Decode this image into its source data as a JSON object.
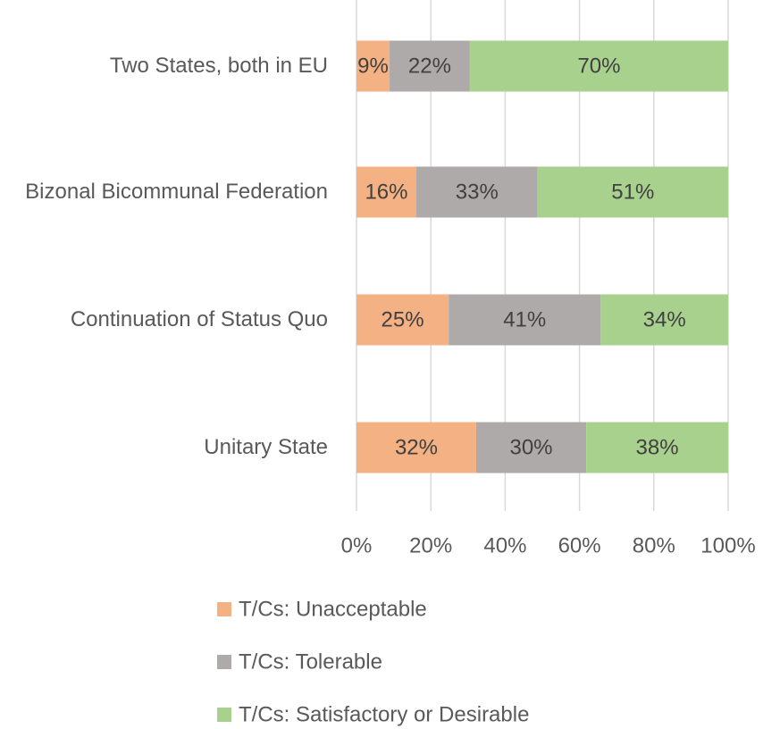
{
  "chart_data": {
    "type": "stacked-bar-horizontal",
    "categories": [
      "Two States, both in EU",
      "Bizonal Bicommunal Federation",
      "Continuation of Status Quo",
      "Unitary State"
    ],
    "series": [
      {
        "name": "T/Cs: Unacceptable",
        "color": "#f4b183",
        "values": [
          8.9,
          16.1,
          24.8,
          32.2
        ],
        "value_labels": [
          "9%",
          "16%",
          "25%",
          "32%"
        ]
      },
      {
        "name": "T/Cs: Tolerable",
        "color": "#aeaaaa",
        "values": [
          21.6,
          32.6,
          40.9,
          29.6
        ],
        "value_labels": [
          "22%",
          "33%",
          "41%",
          "30%"
        ]
      },
      {
        "name": "T/Cs: Satisfactory or Desirable",
        "color": "#a9d18e",
        "values": [
          69.5,
          51.3,
          34.3,
          38.2
        ],
        "value_labels": [
          "70%",
          "51%",
          "34%",
          "38%"
        ]
      }
    ],
    "xlim": [
      0,
      100
    ],
    "xticks": [
      {
        "value": 0,
        "label": "0%"
      },
      {
        "value": 20,
        "label": "20%"
      },
      {
        "value": 40,
        "label": "40%"
      },
      {
        "value": 60,
        "label": "60%"
      },
      {
        "value": 80,
        "label": "80%"
      },
      {
        "value": 100,
        "label": "100%"
      }
    ],
    "grid": true,
    "legend": "bottom"
  }
}
